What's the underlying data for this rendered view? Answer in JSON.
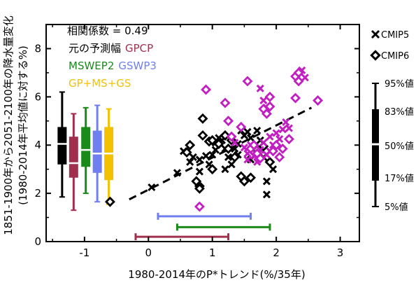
{
  "chart_data": {
    "type": "scatter",
    "title": "",
    "xlabel": "1980-2014年のP*トレンド(%/35年)",
    "ylabel_line1": "1851-1900年から2051-2100年の降水量変化",
    "ylabel_line2": "(1980-2014年平均値に対する%)",
    "xlim": [
      -1.6,
      3.3
    ],
    "ylim": [
      0,
      9
    ],
    "xticks": [
      -1,
      0,
      1,
      2,
      3
    ],
    "yticks": [
      0,
      2,
      4,
      6,
      8
    ],
    "grid": false,
    "annotations": {
      "corr": "相関係数 = 0.49",
      "pred_label": "元の予測幅",
      "gpcp": "GPCP",
      "mswep": "MSWEP2",
      "gswp": "GSWP3",
      "combo": "GP+MS+GS"
    },
    "colors": {
      "cmip5": "#000000",
      "cmip6": "#c21ec2",
      "original": "#000000",
      "gpcp": "#a0304e",
      "mswep": "#1b8a1b",
      "gswp": "#6f7ff0",
      "combo": "#f2c200"
    },
    "series": [
      {
        "name": "CMIP5",
        "marker": "x",
        "points": [
          [
            0.05,
            2.25
          ],
          [
            0.45,
            2.85
          ],
          [
            0.65,
            3.3
          ],
          [
            0.7,
            3.5
          ],
          [
            0.8,
            2.9
          ],
          [
            0.8,
            3.4
          ],
          [
            0.9,
            3.55
          ],
          [
            0.95,
            3.2
          ],
          [
            1.0,
            3.6
          ],
          [
            1.05,
            3.8
          ],
          [
            1.1,
            4.3
          ],
          [
            1.15,
            4.2
          ],
          [
            1.2,
            3.85
          ],
          [
            1.25,
            3.5
          ],
          [
            1.3,
            3.2
          ],
          [
            1.35,
            3.85
          ],
          [
            1.4,
            4.05
          ],
          [
            1.45,
            4.6
          ],
          [
            1.5,
            4.4
          ],
          [
            1.55,
            4.55
          ],
          [
            1.6,
            4.3
          ],
          [
            1.65,
            3.95
          ],
          [
            1.7,
            4.6
          ],
          [
            1.75,
            4.2
          ],
          [
            1.8,
            3.5
          ],
          [
            1.85,
            2.5
          ],
          [
            1.85,
            1.95
          ],
          [
            1.95,
            3.0
          ],
          [
            1.6,
            3.4
          ],
          [
            1.2,
            3.0
          ],
          [
            0.55,
            3.75
          ],
          [
            1.05,
            4.1
          ],
          [
            1.4,
            3.6
          ]
        ]
      },
      {
        "name": "CMIP6",
        "marker": "diamond",
        "points": [
          [
            -0.6,
            1.65
          ],
          [
            0.6,
            3.7
          ],
          [
            0.65,
            4.0
          ],
          [
            0.75,
            2.5
          ],
          [
            0.8,
            2.3
          ],
          [
            0.8,
            2.2
          ],
          [
            0.85,
            4.4
          ],
          [
            0.85,
            5.1
          ],
          [
            0.95,
            4.15
          ],
          [
            1.0,
            4.2
          ],
          [
            1.1,
            4.05
          ],
          [
            1.2,
            4.4
          ],
          [
            1.25,
            3.85
          ],
          [
            1.35,
            3.5
          ],
          [
            1.45,
            2.7
          ],
          [
            1.5,
            2.5
          ],
          [
            1.6,
            2.65
          ],
          [
            1.7,
            3.8
          ],
          [
            1.8,
            3.95
          ],
          [
            1.9,
            3.3
          ],
          [
            1.2,
            4.4
          ],
          [
            1.0,
            3.0
          ],
          [
            1.3,
            4.2
          ]
        ]
      },
      {
        "name": "CMIP5-magenta",
        "marker": "x",
        "points": [
          [
            1.35,
            4.1
          ],
          [
            1.5,
            3.9
          ],
          [
            1.55,
            3.65
          ],
          [
            1.6,
            4.0
          ],
          [
            1.65,
            3.55
          ],
          [
            1.7,
            3.3
          ],
          [
            1.75,
            3.8
          ],
          [
            1.8,
            4.1
          ],
          [
            1.85,
            3.6
          ],
          [
            1.9,
            4.35
          ],
          [
            1.95,
            4.0
          ],
          [
            2.0,
            4.5
          ],
          [
            2.05,
            4.25
          ],
          [
            2.1,
            4.65
          ],
          [
            2.15,
            4.95
          ],
          [
            2.2,
            4.7
          ],
          [
            1.8,
            5.85
          ],
          [
            1.75,
            6.35
          ],
          [
            1.85,
            5.55
          ],
          [
            2.4,
            7.1
          ],
          [
            2.45,
            6.8
          ],
          [
            1.55,
            3.4
          ],
          [
            1.9,
            3.75
          ]
        ]
      },
      {
        "name": "CMIP6-magenta",
        "marker": "diamond",
        "points": [
          [
            0.8,
            1.45
          ],
          [
            0.9,
            6.3
          ],
          [
            1.2,
            5.75
          ],
          [
            1.25,
            5.0
          ],
          [
            1.3,
            4.35
          ],
          [
            1.45,
            4.75
          ],
          [
            1.55,
            6.65
          ],
          [
            1.6,
            3.85
          ],
          [
            1.65,
            4.0
          ],
          [
            1.7,
            3.65
          ],
          [
            1.75,
            3.45
          ],
          [
            1.8,
            5.5
          ],
          [
            1.85,
            5.3
          ],
          [
            1.9,
            5.6
          ],
          [
            1.95,
            3.75
          ],
          [
            2.0,
            4.0
          ],
          [
            2.05,
            3.5
          ],
          [
            2.1,
            3.85
          ],
          [
            2.2,
            4.25
          ],
          [
            2.3,
            6.85
          ],
          [
            2.35,
            6.65
          ],
          [
            2.3,
            5.95
          ],
          [
            2.65,
            5.85
          ],
          [
            2.35,
            7.0
          ],
          [
            1.9,
            6.0
          ]
        ]
      }
    ],
    "trendline": {
      "x": [
        -0.3,
        2.55
      ],
      "y": [
        1.75,
        5.55
      ]
    },
    "boxes": [
      {
        "label": "元の予測幅",
        "x": -1.35,
        "whisker": [
          1.85,
          6.2
        ],
        "box": [
          3.2,
          4.75
        ],
        "median": 4.05
      },
      {
        "label": "GPCP",
        "x": -1.17,
        "whisker": [
          1.3,
          5.3
        ],
        "box": [
          2.65,
          4.35
        ],
        "median": 3.25
      },
      {
        "label": "MSWEP2",
        "x": -0.98,
        "whisker": [
          2.0,
          5.55
        ],
        "box": [
          3.1,
          4.75
        ],
        "median": 3.8
      },
      {
        "label": "GSWP3",
        "x": -0.8,
        "whisker": [
          1.65,
          5.65
        ],
        "box": [
          2.85,
          4.6
        ],
        "median": 3.65
      },
      {
        "label": "GP+MS+GS",
        "x": -0.62,
        "whisker": [
          1.55,
          5.5
        ],
        "box": [
          2.55,
          4.75
        ],
        "median": 3.65
      }
    ],
    "ranges": [
      {
        "label": "GSWP3",
        "x": [
          0.15,
          1.6
        ],
        "y": 1.05
      },
      {
        "label": "MSWEP2",
        "x": [
          0.45,
          1.9
        ],
        "y": 0.6
      },
      {
        "label": "GPCP",
        "x": [
          -0.2,
          1.25
        ],
        "y": 0.2
      }
    ],
    "legend": {
      "placement": "right",
      "cmip5": "CMIP5",
      "cmip6": "CMIP6",
      "box_labels": [
        "95%値",
        "83%値",
        "50%値",
        "17%値",
        "5%値"
      ]
    }
  }
}
